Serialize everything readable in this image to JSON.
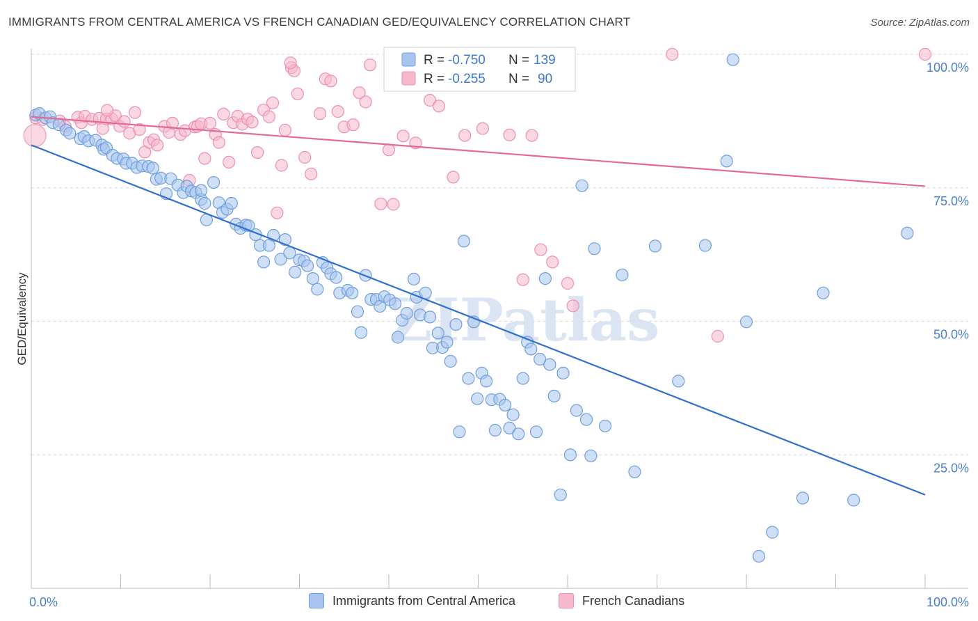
{
  "title": "IMMIGRANTS FROM CENTRAL AMERICA VS FRENCH CANADIAN GED/EQUIVALENCY CORRELATION CHART",
  "source": "Source: ZipAtlas.com",
  "watermark": "ZIPatlas",
  "colors": {
    "blue_fill": "#a8c4ee",
    "blue_stroke": "#6f9fdd",
    "blue_line": "#2f6fcf",
    "pink_fill": "#f6b8cc",
    "pink_stroke": "#ee8fad",
    "pink_line": "#e46a93",
    "axis_text": "#4a7fd0",
    "grid": "#d8d8d8"
  },
  "legend_box": {
    "rows": [
      {
        "r_label": "R =",
        "r_value": "-0.750",
        "n_label": "N =",
        "n_value": "139",
        "series": "blue"
      },
      {
        "r_label": "R =",
        "r_value": "-0.255",
        "n_label": "N =",
        "n_value": "90",
        "series": "pink"
      }
    ]
  },
  "bottom_legend": [
    {
      "label": "Immigrants from Central America",
      "series": "blue"
    },
    {
      "label": "French Canadians",
      "series": "pink"
    }
  ],
  "chart_data": {
    "type": "scatter",
    "title": "IMMIGRANTS FROM CENTRAL AMERICA VS FRENCH CANADIAN GED/EQUIVALENCY CORRELATION CHART",
    "xlabel": "",
    "ylabel": "GED/Equivalency",
    "xlim": [
      0,
      100
    ],
    "ylim": [
      0,
      100
    ],
    "x_tick_labels": [
      "0.0%",
      "100.0%"
    ],
    "y_tick_values": [
      25,
      50,
      75,
      100
    ],
    "y_tick_labels": [
      "25.0%",
      "50.0%",
      "75.0%",
      "100.0%"
    ],
    "series": [
      {
        "name": "Immigrants from Central America",
        "color": "blue",
        "R": -0.75,
        "N": 139,
        "trend": {
          "x": [
            0,
            100
          ],
          "y": [
            83.0,
            17.5
          ]
        },
        "points": [
          [
            0.5,
            88.6
          ],
          [
            0.9,
            88.9
          ],
          [
            1.6,
            88.1
          ],
          [
            2.1,
            88.3
          ],
          [
            2.4,
            87.2
          ],
          [
            3.1,
            86.8
          ],
          [
            3.9,
            85.8
          ],
          [
            4.3,
            85.2
          ],
          [
            5.5,
            84.2
          ],
          [
            5.9,
            84.6
          ],
          [
            6.4,
            83.8
          ],
          [
            7.2,
            83.9
          ],
          [
            7.9,
            83.0
          ],
          [
            8.1,
            82.2
          ],
          [
            8.4,
            82.5
          ],
          [
            9.1,
            81.1
          ],
          [
            9.6,
            80.5
          ],
          [
            10.3,
            80.4
          ],
          [
            10.6,
            79.6
          ],
          [
            11.3,
            79.6
          ],
          [
            11.8,
            78.8
          ],
          [
            12.4,
            79.1
          ],
          [
            13.1,
            79.0
          ],
          [
            13.6,
            78.7
          ],
          [
            14.0,
            76.6
          ],
          [
            14.5,
            76.8
          ],
          [
            15.1,
            73.9
          ],
          [
            15.6,
            76.7
          ],
          [
            16.4,
            75.5
          ],
          [
            17.0,
            74.1
          ],
          [
            17.4,
            75.3
          ],
          [
            17.9,
            74.4
          ],
          [
            18.4,
            74.1
          ],
          [
            19.0,
            72.8
          ],
          [
            19.0,
            74.5
          ],
          [
            19.4,
            72.1
          ],
          [
            19.6,
            69.0
          ],
          [
            20.4,
            76.0
          ],
          [
            21.0,
            72.2
          ],
          [
            21.4,
            70.4
          ],
          [
            21.9,
            71.0
          ],
          [
            22.4,
            72.1
          ],
          [
            22.9,
            68.2
          ],
          [
            23.4,
            67.4
          ],
          [
            24.0,
            68.0
          ],
          [
            24.3,
            67.9
          ],
          [
            25.1,
            66.2
          ],
          [
            25.6,
            64.2
          ],
          [
            26.0,
            61.1
          ],
          [
            26.6,
            64.2
          ],
          [
            27.1,
            66.1
          ],
          [
            27.9,
            61.6
          ],
          [
            28.4,
            65.3
          ],
          [
            28.9,
            62.8
          ],
          [
            29.5,
            59.2
          ],
          [
            30.0,
            61.5
          ],
          [
            30.5,
            61.3
          ],
          [
            30.9,
            60.4
          ],
          [
            31.5,
            58.0
          ],
          [
            32.0,
            56.0
          ],
          [
            32.6,
            61.0
          ],
          [
            33.1,
            60.0
          ],
          [
            33.5,
            58.9
          ],
          [
            34.1,
            58.2
          ],
          [
            34.5,
            55.3
          ],
          [
            35.4,
            55.8
          ],
          [
            35.9,
            55.3
          ],
          [
            36.5,
            51.8
          ],
          [
            36.9,
            47.9
          ],
          [
            37.4,
            58.6
          ],
          [
            38.0,
            54.1
          ],
          [
            38.6,
            54.1
          ],
          [
            39.0,
            52.8
          ],
          [
            39.5,
            54.6
          ],
          [
            40.1,
            54.0
          ],
          [
            40.7,
            53.3
          ],
          [
            41.0,
            47.0
          ],
          [
            41.5,
            50.2
          ],
          [
            42.0,
            51.5
          ],
          [
            42.8,
            57.9
          ],
          [
            43.1,
            54.5
          ],
          [
            43.5,
            51.2
          ],
          [
            44.1,
            55.3
          ],
          [
            44.6,
            50.8
          ],
          [
            44.9,
            45.0
          ],
          [
            45.5,
            47.8
          ],
          [
            46.0,
            45.1
          ],
          [
            46.5,
            46.1
          ],
          [
            46.9,
            42.5
          ],
          [
            47.5,
            49.4
          ],
          [
            47.9,
            29.3
          ],
          [
            48.4,
            65.0
          ],
          [
            48.9,
            39.3
          ],
          [
            49.5,
            49.9
          ],
          [
            49.9,
            35.5
          ],
          [
            50.4,
            40.3
          ],
          [
            50.9,
            38.8
          ],
          [
            51.5,
            35.3
          ],
          [
            51.9,
            29.6
          ],
          [
            52.4,
            35.4
          ],
          [
            53.0,
            34.3
          ],
          [
            53.5,
            30.0
          ],
          [
            53.9,
            32.5
          ],
          [
            54.5,
            28.9
          ],
          [
            55.0,
            39.3
          ],
          [
            55.5,
            46.1
          ],
          [
            55.9,
            44.8
          ],
          [
            56.5,
            29.3
          ],
          [
            56.9,
            42.9
          ],
          [
            57.5,
            58.0
          ],
          [
            58.0,
            41.9
          ],
          [
            58.5,
            36.0
          ],
          [
            59.2,
            17.5
          ],
          [
            59.5,
            40.3
          ],
          [
            60.3,
            25.0
          ],
          [
            61.0,
            33.3
          ],
          [
            61.6,
            75.4
          ],
          [
            62.1,
            31.6
          ],
          [
            62.6,
            24.8
          ],
          [
            63.0,
            63.6
          ],
          [
            64.2,
            30.4
          ],
          [
            66.1,
            58.7
          ],
          [
            67.5,
            21.8
          ],
          [
            69.8,
            64.1
          ],
          [
            72.4,
            38.8
          ],
          [
            75.4,
            64.2
          ],
          [
            77.8,
            80.0
          ],
          [
            80.0,
            49.9
          ],
          [
            81.4,
            6.0
          ],
          [
            82.9,
            10.5
          ],
          [
            86.3,
            16.9
          ],
          [
            88.6,
            55.3
          ],
          [
            98.0,
            66.5
          ],
          [
            92.0,
            16.5
          ],
          [
            78.5,
            99.0
          ]
        ]
      },
      {
        "name": "French Canadians",
        "color": "pink",
        "R": -0.255,
        "N": 90,
        "trend": {
          "x": [
            0,
            100
          ],
          "y": [
            88.3,
            75.3
          ]
        },
        "points": [
          [
            0.5,
            88.1
          ],
          [
            1.3,
            87.8
          ],
          [
            3.2,
            87.5
          ],
          [
            3.8,
            86.5
          ],
          [
            5.2,
            88.2
          ],
          [
            5.6,
            87.2
          ],
          [
            6.0,
            88.4
          ],
          [
            6.8,
            87.8
          ],
          [
            7.6,
            88.0
          ],
          [
            8.0,
            86.1
          ],
          [
            8.4,
            87.9
          ],
          [
            9.0,
            87.9
          ],
          [
            9.4,
            88.5
          ],
          [
            9.9,
            86.5
          ],
          [
            10.4,
            87.4
          ],
          [
            11.0,
            85.2
          ],
          [
            11.6,
            89.1
          ],
          [
            12.1,
            85.9
          ],
          [
            12.7,
            81.7
          ],
          [
            13.2,
            83.5
          ],
          [
            13.7,
            84.0
          ],
          [
            14.1,
            83.0
          ],
          [
            14.9,
            86.5
          ],
          [
            15.4,
            85.4
          ],
          [
            15.8,
            87.1
          ],
          [
            16.7,
            85.0
          ],
          [
            17.2,
            85.7
          ],
          [
            17.7,
            76.4
          ],
          [
            18.3,
            86.4
          ],
          [
            18.6,
            86.5
          ],
          [
            19.0,
            87.0
          ],
          [
            19.4,
            80.5
          ],
          [
            20.0,
            87.1
          ],
          [
            20.6,
            85.0
          ],
          [
            21.0,
            83.5
          ],
          [
            21.5,
            88.8
          ],
          [
            22.1,
            79.8
          ],
          [
            22.6,
            87.2
          ],
          [
            23.1,
            88.4
          ],
          [
            23.6,
            86.9
          ],
          [
            24.2,
            87.9
          ],
          [
            24.7,
            87.3
          ],
          [
            25.3,
            81.6
          ],
          [
            26.0,
            89.6
          ],
          [
            26.6,
            88.3
          ],
          [
            27.0,
            90.9
          ],
          [
            27.5,
            70.3
          ],
          [
            28.0,
            79.2
          ],
          [
            28.4,
            85.8
          ],
          [
            29.1,
            97.5
          ],
          [
            29.4,
            96.9
          ],
          [
            29.8,
            92.6
          ],
          [
            30.6,
            80.7
          ],
          [
            31.3,
            77.6
          ],
          [
            32.3,
            88.9
          ],
          [
            32.9,
            95.4
          ],
          [
            34.3,
            89.3
          ],
          [
            35.0,
            86.4
          ],
          [
            36.0,
            86.8
          ],
          [
            36.7,
            92.8
          ],
          [
            37.4,
            91.1
          ],
          [
            37.9,
            98.0
          ],
          [
            39.1,
            72.0
          ],
          [
            40.0,
            82.1
          ],
          [
            40.5,
            71.9
          ],
          [
            41.6,
            84.7
          ],
          [
            43.0,
            83.4
          ],
          [
            44.6,
            91.4
          ],
          [
            45.6,
            90.3
          ],
          [
            47.2,
            77.0
          ],
          [
            48.5,
            84.8
          ],
          [
            50.5,
            86.1
          ],
          [
            53.5,
            84.9
          ],
          [
            55.0,
            57.8
          ],
          [
            57.0,
            63.4
          ],
          [
            58.3,
            61.1
          ],
          [
            60.0,
            57.1
          ],
          [
            60.6,
            52.9
          ],
          [
            71.7,
            100.0
          ],
          [
            76.8,
            47.2
          ],
          [
            100.0,
            100.0
          ],
          [
            29.0,
            98.4
          ],
          [
            8.5,
            89.5
          ],
          [
            33.5,
            95.0
          ],
          [
            56.0,
            84.8
          ]
        ]
      }
    ]
  }
}
